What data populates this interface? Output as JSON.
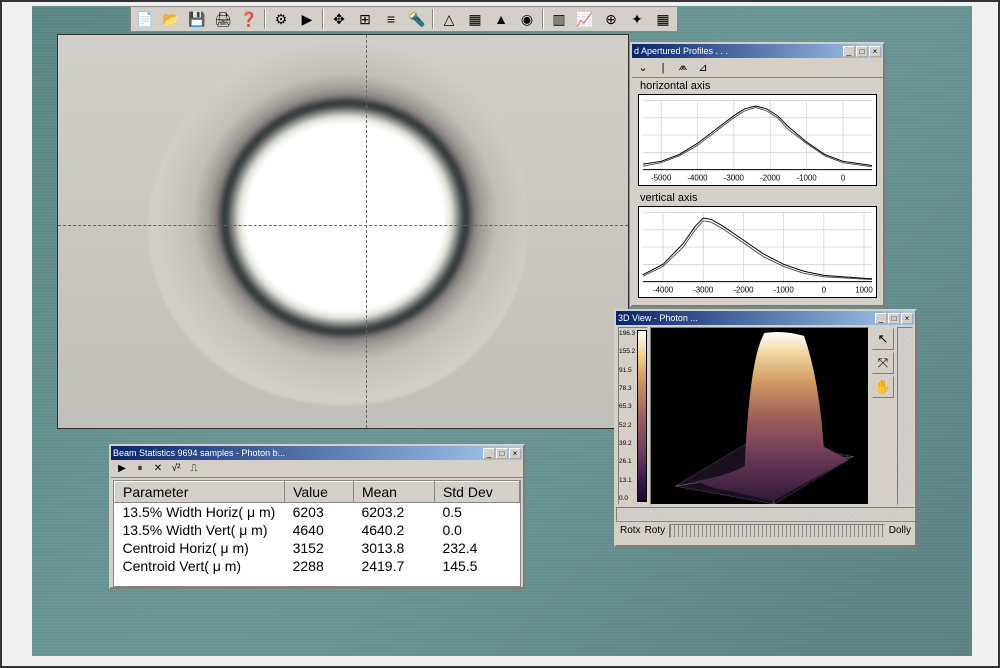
{
  "toolbar": {
    "buttons": [
      "📄",
      "📂",
      "💾",
      "🖨",
      "❓",
      "⚙",
      "▶",
      "✥",
      "⊞",
      "≡",
      "🔦",
      "△",
      "▦",
      "▲",
      "◉",
      "▥",
      "📈",
      "⊕",
      "✦",
      "▦"
    ]
  },
  "beam_image": {
    "crosshair_x": 308,
    "crosshair_y": 190,
    "background_color": "#c8c8c0",
    "ring_colors": {
      "center": "#ffffff",
      "dark": "#303838",
      "outer": "#d0d0c8"
    }
  },
  "profile_window": {
    "title": "Apertured Profiles",
    "title_truncated": "d Apertured Profiles . . .",
    "toolbar": [
      "⌄",
      "|",
      "⩕",
      "⊿"
    ],
    "charts": [
      {
        "label": "horizontal axis",
        "type": "line",
        "xlim": [
          -5500,
          800
        ],
        "ylim": [
          0,
          1
        ],
        "xticks": [
          -5000,
          -4000,
          -3000,
          -2000,
          -1000,
          0
        ],
        "grid_color": "#cccccc",
        "background_color": "#ffffff",
        "series": [
          {
            "name": "data",
            "color": "#000000",
            "width": 1.0,
            "points": [
              [
                -5500,
                0.08
              ],
              [
                -5000,
                0.12
              ],
              [
                -4500,
                0.22
              ],
              [
                -4000,
                0.38
              ],
              [
                -3500,
                0.58
              ],
              [
                -3000,
                0.78
              ],
              [
                -2700,
                0.88
              ],
              [
                -2400,
                0.92
              ],
              [
                -2100,
                0.88
              ],
              [
                -1800,
                0.78
              ],
              [
                -1500,
                0.62
              ],
              [
                -1000,
                0.4
              ],
              [
                -500,
                0.22
              ],
              [
                0,
                0.12
              ],
              [
                800,
                0.06
              ]
            ]
          },
          {
            "name": "fit",
            "color": "#444444",
            "width": 0.9,
            "points": [
              [
                -5500,
                0.05
              ],
              [
                -5000,
                0.1
              ],
              [
                -4500,
                0.2
              ],
              [
                -4000,
                0.35
              ],
              [
                -3500,
                0.55
              ],
              [
                -3000,
                0.75
              ],
              [
                -2700,
                0.85
              ],
              [
                -2400,
                0.9
              ],
              [
                -2100,
                0.85
              ],
              [
                -1800,
                0.75
              ],
              [
                -1500,
                0.58
              ],
              [
                -1000,
                0.38
              ],
              [
                -500,
                0.2
              ],
              [
                0,
                0.1
              ],
              [
                800,
                0.04
              ]
            ]
          }
        ]
      },
      {
        "label": "vertical axis",
        "type": "line",
        "xlim": [
          -4500,
          1200
        ],
        "ylim": [
          0,
          1
        ],
        "xticks": [
          -4000,
          -3000,
          -2000,
          -1000,
          0,
          1000
        ],
        "grid_color": "#cccccc",
        "background_color": "#ffffff",
        "series": [
          {
            "name": "data",
            "color": "#000000",
            "width": 1.0,
            "points": [
              [
                -4500,
                0.1
              ],
              [
                -4000,
                0.25
              ],
              [
                -3500,
                0.55
              ],
              [
                -3200,
                0.8
              ],
              [
                -3000,
                0.92
              ],
              [
                -2800,
                0.9
              ],
              [
                -2500,
                0.8
              ],
              [
                -2000,
                0.6
              ],
              [
                -1500,
                0.4
              ],
              [
                -1000,
                0.25
              ],
              [
                -500,
                0.15
              ],
              [
                0,
                0.09
              ],
              [
                1200,
                0.04
              ]
            ]
          },
          {
            "name": "fit",
            "color": "#444444",
            "width": 0.9,
            "points": [
              [
                -4500,
                0.08
              ],
              [
                -4000,
                0.22
              ],
              [
                -3500,
                0.5
              ],
              [
                -3200,
                0.75
              ],
              [
                -3000,
                0.88
              ],
              [
                -2800,
                0.86
              ],
              [
                -2500,
                0.76
              ],
              [
                -2000,
                0.56
              ],
              [
                -1500,
                0.36
              ],
              [
                -1000,
                0.22
              ],
              [
                -500,
                0.12
              ],
              [
                0,
                0.07
              ],
              [
                1200,
                0.03
              ]
            ]
          }
        ]
      }
    ]
  },
  "view3d_window": {
    "title": "3D View - Photon ...",
    "colorbar": {
      "ticks": [
        "196.3",
        "155.2",
        "91.5",
        "78.3",
        "65.3",
        "52.2",
        "39.2",
        "26.1",
        "13.1",
        "0.0"
      ]
    },
    "tools": [
      "↖",
      "⤧",
      "✋"
    ],
    "controls": {
      "rotx": "Rotx",
      "roty": "Roty",
      "dolly": "Dolly"
    }
  },
  "stats_window": {
    "title": "Beam Statistics 9694 samples - Photon b...",
    "toolbar": [
      "▶",
      "⏸",
      "✕",
      "√²",
      "⎍"
    ],
    "columns": [
      "Parameter",
      "Value",
      "Mean",
      "Std Dev"
    ],
    "rows": [
      {
        "param": "13.5% Width Horiz( μ m)",
        "value": "6203",
        "mean": "6203.2",
        "std": "0.5"
      },
      {
        "param": "13.5% Width Vert( μ m)",
        "value": "4640",
        "mean": "4640.2",
        "std": "0.0"
      },
      {
        "param": "Centroid Horiz( μ m)",
        "value": "3152",
        "mean": "3013.8",
        "std": "232.4"
      },
      {
        "param": "Centroid Vert( μ m)",
        "value": "2288",
        "mean": "2419.7",
        "std": "145.5"
      }
    ]
  }
}
